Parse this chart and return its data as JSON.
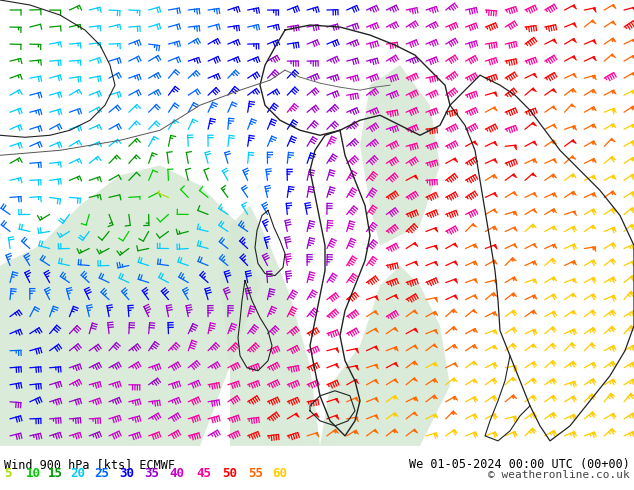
{
  "title_left": "Wind 900 hPa [kts] ECMWF",
  "title_right": "We 01-05-2024 00:00 UTC (00+00)",
  "copyright": "© weatheronline.co.uk",
  "legend_values": [
    5,
    10,
    15,
    20,
    25,
    30,
    35,
    40,
    45,
    50,
    55,
    60
  ],
  "legend_colors": [
    "#aadd00",
    "#00cc00",
    "#009900",
    "#00ccff",
    "#0066ff",
    "#0000ff",
    "#9900cc",
    "#cc00cc",
    "#ff0099",
    "#ff0000",
    "#ff6600",
    "#ffcc00"
  ],
  "land_color": "#aade78",
  "sea_color": "#d4e8d4",
  "border_color": "#222222",
  "footer_bg": "#ffffff",
  "footer_text_color": "#000000",
  "fig_width": 6.34,
  "fig_height": 4.9,
  "dpi": 100
}
